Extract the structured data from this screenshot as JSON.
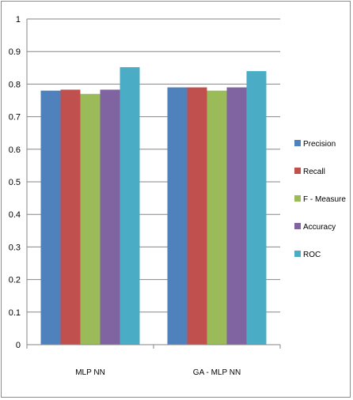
{
  "chart_data": {
    "type": "bar",
    "categories": [
      "MLP NN",
      "GA - MLP NN"
    ],
    "series": [
      {
        "name": "Precision",
        "values": [
          0.78,
          0.79
        ]
      },
      {
        "name": "Recall",
        "values": [
          0.783,
          0.79
        ]
      },
      {
        "name": "F - Measure",
        "values": [
          0.77,
          0.78
        ]
      },
      {
        "name": "Accuracy",
        "values": [
          0.783,
          0.79
        ]
      },
      {
        "name": "ROC",
        "values": [
          0.852,
          0.84
        ]
      }
    ],
    "colors": [
      "#4f81bd",
      "#c0504d",
      "#9bbb59",
      "#8064a2",
      "#4bacc6"
    ],
    "yticks": [
      "0",
      "0.1",
      "0.2",
      "0.3",
      "0.4",
      "0.5",
      "0.6",
      "0.7",
      "0.8",
      "0.9",
      "1"
    ],
    "ylim": [
      0,
      1
    ],
    "grid": true,
    "legend_position": "right"
  }
}
